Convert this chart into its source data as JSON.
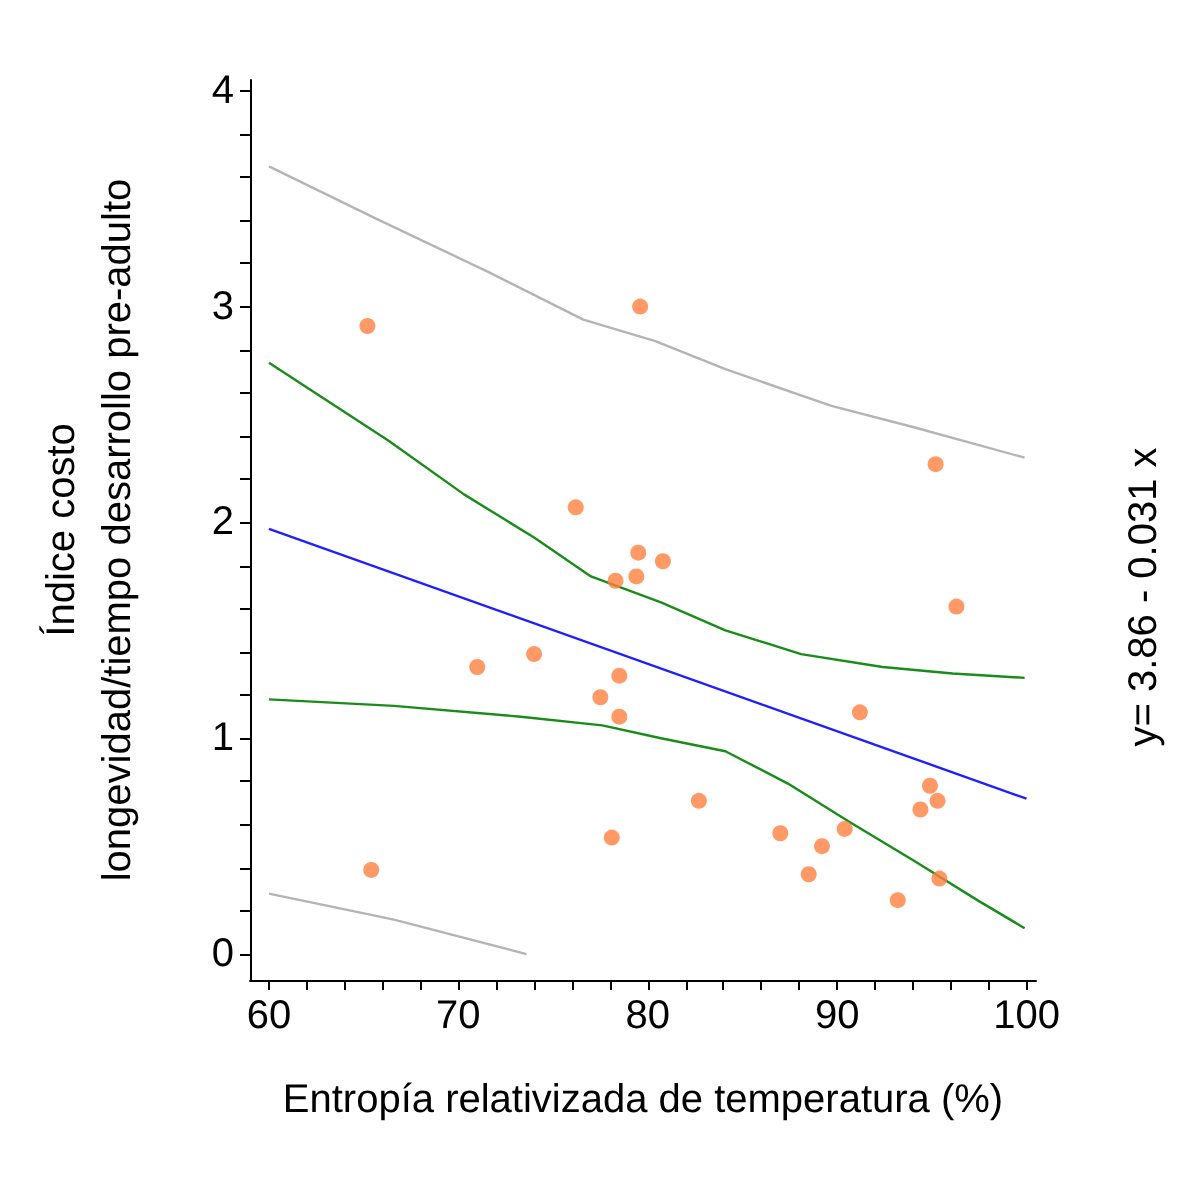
{
  "chart_data": {
    "type": "scatter",
    "xlabel": "Entropía relativizada de temperatura (%)",
    "ylabel": "Índice costo\nlongevidad/tiempo desarrollo pre-adulto",
    "annotations": [
      "y= 3.86 - 0.031 x"
    ],
    "xlim": [
      59,
      100.5
    ],
    "ylim": [
      -0.12,
      4.05
    ],
    "xticks": [
      60,
      {
        "value": 62,
        "label": null
      },
      {
        "value": 64,
        "label": null
      },
      {
        "value": 66,
        "label": null
      },
      {
        "value": 68,
        "label": null
      },
      70,
      {
        "value": 72,
        "label": null
      },
      {
        "value": 74,
        "label": null
      },
      {
        "value": 76,
        "label": null
      },
      {
        "value": 78,
        "label": null
      },
      80,
      {
        "value": 82,
        "label": null
      },
      {
        "value": 84,
        "label": null
      },
      {
        "value": 86,
        "label": null
      },
      {
        "value": 88,
        "label": null
      },
      90,
      {
        "value": 92,
        "label": null
      },
      {
        "value": 94,
        "label": null
      },
      {
        "value": 96,
        "label": null
      },
      {
        "value": 98,
        "label": null
      },
      100
    ],
    "yticks": [
      0,
      {
        "value": 0.2,
        "label": null
      },
      {
        "value": 0.4,
        "label": null
      },
      {
        "value": 0.6,
        "label": null
      },
      {
        "value": 0.8,
        "label": null
      },
      1,
      {
        "value": 1.2,
        "label": null
      },
      {
        "value": 1.4,
        "label": null
      },
      {
        "value": 1.6,
        "label": null
      },
      {
        "value": 1.8,
        "label": null
      },
      2,
      {
        "value": 2.2,
        "label": null
      },
      {
        "value": 2.4,
        "label": null
      },
      {
        "value": 2.6,
        "label": null
      },
      {
        "value": 2.8,
        "label": null
      },
      3,
      {
        "value": 3.2,
        "label": null
      },
      {
        "value": 3.4,
        "label": null
      },
      {
        "value": 3.6,
        "label": null
      },
      {
        "value": 3.8,
        "label": null
      },
      4
    ],
    "grid": false,
    "series": [
      {
        "type": "line",
        "color": "#b4b4b4",
        "x": [
          60,
          65.6,
          71.6,
          76.6,
          80.4,
          84.1,
          89.7,
          94.1,
          99.9
        ],
        "values": [
          3.65,
          3.41,
          3.16,
          2.94,
          2.84,
          2.71,
          2.54,
          2.44,
          2.3
        ]
      },
      {
        "type": "line",
        "color": "#b4b4b4",
        "x": [
          60,
          66.6,
          73.6
        ],
        "values": [
          0.28,
          0.16,
          0.0
        ]
      },
      {
        "type": "line",
        "color": "#1a8c1a",
        "x": [
          60,
          66.3,
          70.3,
          74,
          77,
          80.7,
          84.1,
          88.1,
          92.4,
          96.1,
          99.9
        ],
        "values": [
          2.74,
          2.38,
          2.13,
          1.93,
          1.75,
          1.63,
          1.5,
          1.39,
          1.33,
          1.3,
          1.28
        ]
      },
      {
        "type": "line",
        "color": "#1a8c1a",
        "x": [
          60,
          66.6,
          73.3,
          77.6,
          80.7,
          84.1,
          87.4,
          90.7,
          94.1,
          97.4,
          99.9
        ],
        "values": [
          1.18,
          1.15,
          1.1,
          1.06,
          1.0,
          0.94,
          0.79,
          0.61,
          0.43,
          0.25,
          0.12
        ]
      },
      {
        "type": "line",
        "color": "#2020ff",
        "x": [
          60,
          100
        ],
        "values": [
          1.97,
          0.72
        ]
      },
      {
        "color": "#ff7f3f",
        "marker": "circle",
        "x": [
          65.2,
          65.4,
          71.0,
          74.0,
          76.2,
          77.5,
          78.1,
          78.3,
          78.5,
          78.5,
          79.6,
          79.4,
          79.5,
          80.8,
          82.7,
          87.0,
          88.5,
          89.2,
          90.4,
          91.2,
          93.2,
          94.4,
          94.9,
          95.3,
          95.2,
          95.4,
          96.3
        ],
        "values": [
          2.91,
          0.39,
          1.33,
          1.39,
          2.07,
          1.19,
          0.54,
          1.73,
          1.29,
          1.1,
          3.0,
          1.75,
          1.86,
          1.82,
          0.71,
          0.56,
          0.37,
          0.5,
          0.58,
          1.12,
          0.25,
          0.67,
          0.78,
          0.71,
          2.27,
          0.35,
          1.61
        ]
      }
    ]
  }
}
